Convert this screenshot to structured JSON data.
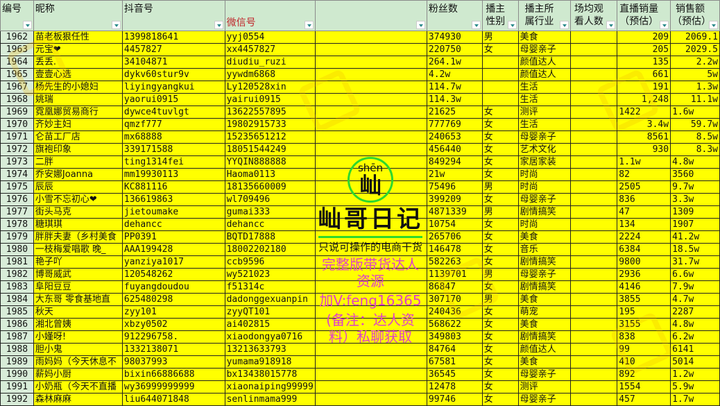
{
  "headers": [
    {
      "label": "编号",
      "filter": true
    },
    {
      "label": "昵称",
      "filter": true
    },
    {
      "label": "抖音号",
      "filter": true
    },
    {
      "label": "微信号",
      "filter": true,
      "color": "#c0282c"
    },
    {
      "label": "",
      "filter": true
    },
    {
      "label": "粉丝数",
      "filter": true
    },
    {
      "label": "播主性别",
      "filter": true
    },
    {
      "label": "播主所属行业",
      "filter": true
    },
    {
      "label": "场均观看人数",
      "filter": true
    },
    {
      "label": "直播销量（预估）",
      "filter": true
    },
    {
      "label": "销售额（预估）",
      "filter": true
    }
  ],
  "rows": [
    [
      "1962",
      "苗老板狠任性",
      "1399818641",
      "yyj0554",
      "",
      "374930",
      "男",
      "美食",
      "",
      "209",
      "2069.1"
    ],
    [
      "1963",
      "元宝❤",
      "4457827",
      "xx4457827",
      "",
      "220750",
      "女",
      "母婴亲子",
      "",
      "205",
      "2029.5"
    ],
    [
      "1964",
      "丢丢.",
      "34104871",
      "diudiu_ruzi",
      "",
      "264.1w",
      "",
      "颜值达人",
      "",
      "135",
      "2.2w"
    ],
    [
      "1965",
      "壹壹心选",
      "dykv60stur9v",
      "yywdm6868",
      "",
      "4.2w",
      "",
      "颜值达人",
      "",
      "661",
      "5w"
    ],
    [
      "1967",
      "杨先生的小媳妇",
      "liyingyangkui",
      "Ly120528xin",
      "",
      "114.7w",
      "",
      "生活",
      "",
      "191",
      "1.3w"
    ],
    [
      "1968",
      "姚瑞",
      "yaorui0915",
      "yairui0915",
      "",
      "114.3w",
      "",
      "生活",
      "",
      "1,248",
      "11.1w"
    ],
    [
      "1969",
      "霓凰娜贸易商行",
      "dywce4tuvlgt",
      "13622557895",
      "",
      "21625",
      "女",
      "测评",
      "",
      "1422",
      "1.6w"
    ],
    [
      "1970",
      "齐妙主妇",
      "qmzf777",
      "19802915733",
      "",
      "777769",
      "女",
      "生活",
      "",
      "3.4w",
      "59.7w"
    ],
    [
      "1971",
      "仑苗工厂店",
      "mx68888",
      "15235651212",
      "",
      "240653",
      "女",
      "母婴亲子",
      "",
      "8561",
      "8.5w"
    ],
    [
      "1972",
      "旗袍印象",
      "339171588",
      "18051544249",
      "",
      "456440",
      "女",
      "艺术文化",
      "",
      "930",
      "8.3w"
    ],
    [
      "1973",
      "二胖",
      "ting1314fei",
      "YYQIN888888",
      "",
      "849294",
      "女",
      "家居家装",
      "",
      "1.1w",
      "4.8w"
    ],
    [
      "1974",
      "乔安娜Joanna",
      "mm19930113",
      "Haoma0113",
      "",
      "21w",
      "女",
      "时尚",
      "",
      "82",
      "3560"
    ],
    [
      "1975",
      "辰辰",
      "KC881116",
      "18135660009",
      "",
      "75496",
      "男",
      "时尚",
      "",
      "2505",
      "9.7w"
    ],
    [
      "1976",
      "小雪不忘初心❤",
      "136619863",
      "wl709496",
      "",
      "399209",
      "女",
      "母婴亲子",
      "",
      "836",
      "3.3w"
    ],
    [
      "1977",
      "街头马克",
      "jietoumake",
      "gumai333",
      "",
      "4871339",
      "男",
      "剧情搞笑",
      "",
      "47",
      "1309"
    ],
    [
      "1978",
      "糖琪琪",
      "dehancc",
      "dehancc",
      "",
      "10754",
      "女",
      "时尚",
      "",
      "134",
      "1907"
    ],
    [
      "1979",
      "胖胖夫妻（乡村美食",
      "PP0391",
      "BQTD17888",
      "",
      "265706",
      "女",
      "美食",
      "",
      "2224",
      "41.2w"
    ],
    [
      "1980",
      "一枝梅爱唱歌  晚_",
      "AAA199428",
      "18002202180",
      "",
      "146478",
      "女",
      "音乐",
      "",
      "6384",
      "18.5w"
    ],
    [
      "1981",
      "艳子吖",
      "yanziya1017",
      "ccb9596",
      "",
      "582263",
      "女",
      "剧情搞笑",
      "",
      "9800",
      "31.7w"
    ],
    [
      "1982",
      "博哥威武",
      "120548262",
      "wy521023",
      "",
      "1139701",
      "男",
      "母婴亲子",
      "",
      "2936",
      "6.6w"
    ],
    [
      "1983",
      "阜阳豆豆",
      "fuyangdoudou",
      "f51314c",
      "",
      "86847",
      "女",
      "剧情搞笑",
      "",
      "4146",
      "7.9w"
    ],
    [
      "1984",
      "大东哥  零食基地直",
      "625480298",
      "dadonggexuanpin",
      "",
      "307170",
      "男",
      "美食",
      "",
      "3855",
      "4.7w"
    ],
    [
      "1985",
      "秋天",
      "zyy101",
      "zyyQT101",
      "",
      "240436",
      "女",
      "萌宠",
      "",
      "195",
      "2287"
    ],
    [
      "1986",
      "湘北曾姨",
      "xbzy0502",
      "ai402815",
      "",
      "568622",
      "女",
      "美食",
      "",
      "3155",
      "4.8w"
    ],
    [
      "1987",
      "小嫤呀!",
      "912296758.",
      "xiaodongya0716",
      "",
      "349803",
      "女",
      "剧情搞笑",
      "",
      "838",
      "6.2w"
    ],
    [
      "1988",
      "胆小鬼",
      "1332138071",
      "13213633793",
      "",
      "84764",
      "女",
      "颜值达人",
      "",
      "99",
      "6141"
    ],
    [
      "1989",
      "雨妈妈（今天休息不",
      "98037993",
      "yumama918918",
      "",
      "67581",
      "女",
      "美食",
      "",
      "410",
      "5014"
    ],
    [
      "1990",
      "薪妈小厨",
      "bixin66886688",
      "bx13438015778",
      "",
      "36545",
      "女",
      "母婴亲子",
      "",
      "892",
      "1.2w"
    ],
    [
      "1991",
      "小奶瓶（今天不直播",
      "wy36999999999",
      "xiaonaiping99999",
      "",
      "12478",
      "女",
      "测评",
      "",
      "1554",
      "5.9w"
    ],
    [
      "1992",
      "森林麻麻",
      "liu644071848",
      "senlinmama999",
      "",
      "99746",
      "女",
      "母婴亲子",
      "",
      "457",
      "1.7w"
    ]
  ],
  "overlay": {
    "line1": "完整版带货达人资源",
    "line2": "加V:feng16365",
    "line3": "(备注：达人资料）私聊获取",
    "logo_pinyin": "shēn",
    "logo_char": "屾",
    "brand": "屾哥日记",
    "slogan": "只说可操作的电商干货"
  },
  "colors": {
    "header_bg": "#cfe9cf",
    "row_bg": "#ffff00",
    "rownum_bg": "#d8ecd8",
    "overlay_text": "#e040c8",
    "logo_ring": "#2ed82e"
  }
}
